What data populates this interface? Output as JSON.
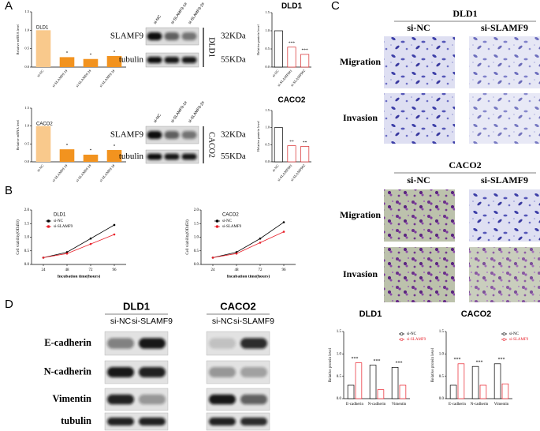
{
  "chart_data": [
    {
      "type": "bar",
      "title": "DLD1",
      "ylabel": "Relative mRNA level",
      "categories": [
        "si-NC",
        "si-SLAMF9 1#",
        "si-SLAMF9 2#",
        "si-SLAMF9 3#"
      ],
      "values": [
        1,
        0.27,
        0.22,
        0.3
      ],
      "colors": [
        "#f9c98c",
        "#f2931f",
        "#f2931f",
        "#f2931f"
      ],
      "annotations": [
        null,
        "*",
        "*",
        "*"
      ],
      "ylim": [
        0,
        1.5
      ],
      "yticks": [
        {
          "value": 0,
          "label": "0.0"
        },
        0.5,
        {
          "value": 1,
          "label": "1.0"
        },
        1.5
      ]
    },
    {
      "type": "bar",
      "title": "DLD1",
      "ylabel": "Relative protein level",
      "categories": [
        "si-NC",
        "si-SLAMF9#1",
        "si-SLAMF9#2"
      ],
      "values": [
        1,
        0.55,
        0.35
      ],
      "colors": [
        "#ffffff",
        "#ffffff",
        "#ffffff"
      ],
      "edgecolors": [
        "#000000",
        "#d62728",
        "#d62728"
      ],
      "annotations": [
        null,
        "***",
        "***"
      ],
      "ylim": [
        0,
        1.5
      ],
      "yticks": [
        {
          "value": 0,
          "label": "0.0"
        },
        0.5,
        {
          "value": 1,
          "label": "1.0"
        },
        1.5
      ]
    },
    {
      "type": "bar",
      "title": "CACO2",
      "ylabel": "Relative mRNA level",
      "categories": [
        "si-NC",
        "si-SLAMF9 1#",
        "si-SLAMF9 2#",
        "si-SLAMF9 3#"
      ],
      "values": [
        1,
        0.35,
        0.2,
        0.33
      ],
      "colors": [
        "#f9c98c",
        "#f2931f",
        "#f2931f",
        "#f2931f"
      ],
      "annotations": [
        null,
        "*",
        "*",
        "*"
      ],
      "ylim": [
        0,
        1.5
      ],
      "yticks": [
        {
          "value": 0,
          "label": "0.0"
        },
        0.5,
        {
          "value": 1,
          "label": "1.0"
        },
        1.5
      ]
    },
    {
      "type": "bar",
      "title": "CACO2",
      "ylabel": "Relative protein level",
      "categories": [
        "si-NC",
        "si-SLAMF9#1",
        "si-SLAMF9#2"
      ],
      "values": [
        1,
        0.47,
        0.45
      ],
      "colors": [
        "#ffffff",
        "#ffffff",
        "#ffffff"
      ],
      "edgecolors": [
        "#000000",
        "#d62728",
        "#d62728"
      ],
      "annotations": [
        null,
        "**",
        "**"
      ],
      "ylim": [
        0,
        1.5
      ],
      "yticks": [
        {
          "value": 0,
          "label": "0.0"
        },
        0.5,
        {
          "value": 1,
          "label": "1.0"
        },
        1.5
      ]
    },
    {
      "type": "line",
      "title": "DLD1",
      "xlabel": "Incubation time(hours)",
      "ylabel": "Cell viability(OD450)",
      "x": [
        24,
        48,
        72,
        96
      ],
      "series": [
        {
          "name": "si-NC",
          "color": "#000000",
          "values": [
            0.25,
            0.45,
            0.95,
            1.45
          ]
        },
        {
          "name": "si-SLAMF9",
          "color": "#e8202a",
          "values": [
            0.25,
            0.4,
            0.75,
            1.1
          ]
        }
      ],
      "xlim": [
        12,
        108
      ],
      "xticks": [
        24,
        48,
        72,
        96
      ],
      "ylim": [
        0,
        2
      ],
      "yticks": [
        {
          "value": 0,
          "label": "0.0"
        },
        0.5,
        {
          "value": 1,
          "label": "1.0"
        },
        1.5,
        {
          "value": 2,
          "label": "2.0"
        }
      ]
    },
    {
      "type": "line",
      "title": "CACO2",
      "xlabel": "Incubation time(hours)",
      "ylabel": "Cell viability(OD450)",
      "x": [
        24,
        48,
        72,
        96
      ],
      "series": [
        {
          "name": "si-NC",
          "color": "#000000",
          "values": [
            0.25,
            0.45,
            0.95,
            1.55
          ]
        },
        {
          "name": "si-SLAMF9",
          "color": "#e8202a",
          "values": [
            0.25,
            0.4,
            0.8,
            1.2
          ]
        }
      ],
      "xlim": [
        12,
        108
      ],
      "xticks": [
        24,
        48,
        72,
        96
      ],
      "ylim": [
        0,
        2
      ],
      "yticks": [
        {
          "value": 0,
          "label": "0.0"
        },
        0.5,
        {
          "value": 1,
          "label": "1.0"
        },
        1.5,
        {
          "value": 2,
          "label": "2.0"
        }
      ]
    },
    {
      "type": "bar",
      "title": "DLD1",
      "ylabel": "Relative protein level",
      "categories": [
        "E-cadherin",
        "N-cadherin",
        "Vimentin"
      ],
      "series": [
        {
          "name": "si-NC",
          "color": "#000000",
          "values": [
            0.3,
            0.75,
            0.7
          ]
        },
        {
          "name": "si-SLAMF9",
          "color": "#e8202a",
          "values": [
            0.8,
            0.2,
            0.3
          ]
        }
      ],
      "annotations": [
        "***",
        "***",
        "***"
      ],
      "ylim": [
        0,
        1.5
      ],
      "yticks": [
        {
          "value": 0,
          "label": "0.0"
        },
        0.5,
        {
          "value": 1,
          "label": "1.0"
        },
        1.5
      ]
    },
    {
      "type": "bar",
      "title": "CACO2",
      "ylabel": "Relative protein level",
      "categories": [
        "E-cadherin",
        "N-cadherin",
        "Vimentin"
      ],
      "series": [
        {
          "name": "si-NC",
          "color": "#000000",
          "values": [
            0.3,
            0.72,
            0.78
          ]
        },
        {
          "name": "si-SLAMF9",
          "color": "#e8202a",
          "values": [
            0.78,
            0.3,
            0.33
          ]
        }
      ],
      "annotations": [
        "***",
        "***",
        "***"
      ],
      "ylim": [
        0,
        1.5
      ],
      "yticks": [
        {
          "value": 0,
          "label": "0.0"
        },
        0.5,
        {
          "value": 1,
          "label": "1.0"
        },
        1.5
      ]
    }
  ],
  "figure": {
    "panels": [
      "A",
      "B",
      "C",
      "D"
    ],
    "blotA": [
      {
        "cell": "DLD1",
        "lanes": [
          "si-NC",
          "si-SLAMF9-1#",
          "si-SLAMF9-2#"
        ],
        "rows": [
          "SLAMF9",
          "tubulin"
        ],
        "sizes": [
          "32KDa",
          "55KDa"
        ]
      },
      {
        "cell": "CACO2",
        "lanes": [
          "si-NC",
          "si-SLAMF9-1#",
          "si-SLAMF9-2#"
        ],
        "rows": [
          "SLAMF9",
          "tubulin"
        ],
        "sizes": [
          "32KDa",
          "55KDa"
        ]
      }
    ],
    "panelC": [
      {
        "cell": "DLD1",
        "cols": [
          "si-NC",
          "si-SLAMF9"
        ],
        "rows": [
          "Migration",
          "Invasion"
        ]
      },
      {
        "cell": "CACO2",
        "cols": [
          "si-NC",
          "si-SLAMF9"
        ],
        "rows": [
          "Migration",
          "Invasion"
        ]
      }
    ],
    "blotD": {
      "cells": [
        {
          "cell": "DLD1",
          "lanes": [
            "si-NC",
            "si-SLAMF9"
          ]
        },
        {
          "cell": "CACO2",
          "lanes": [
            "si-NC",
            "si-SLAMF9"
          ]
        }
      ],
      "rows": [
        "E-cadherin",
        "N-cadherin",
        "Vimentin",
        "tubulin"
      ]
    }
  }
}
